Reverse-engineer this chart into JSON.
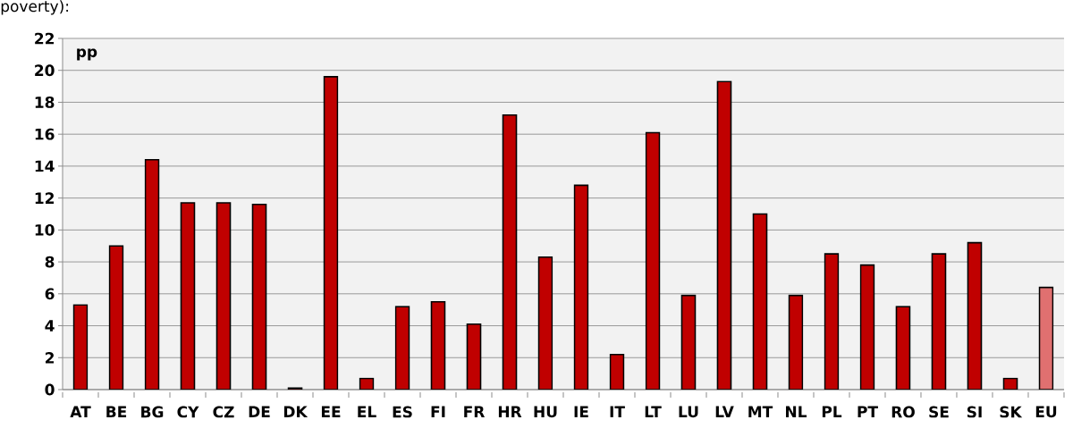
{
  "chart_data": {
    "type": "bar",
    "ylabel": "pp",
    "annotations": [
      "poverty):"
    ],
    "categories": [
      "AT",
      "BE",
      "BG",
      "CY",
      "CZ",
      "DE",
      "DK",
      "EE",
      "EL",
      "ES",
      "FI",
      "FR",
      "HR",
      "HU",
      "IE",
      "IT",
      "LT",
      "LU",
      "LV",
      "MT",
      "NL",
      "PL",
      "PT",
      "RO",
      "SE",
      "SI",
      "SK",
      "EU"
    ],
    "values": [
      5.3,
      9.0,
      14.4,
      11.7,
      11.7,
      11.6,
      0.1,
      19.6,
      0.7,
      5.2,
      5.5,
      4.1,
      17.2,
      8.3,
      12.8,
      2.2,
      16.1,
      5.9,
      19.3,
      11.0,
      5.9,
      8.5,
      7.8,
      5.2,
      8.5,
      9.2,
      0.7,
      6.4
    ],
    "colors": [
      "#c00000",
      "#c00000",
      "#c00000",
      "#c00000",
      "#c00000",
      "#c00000",
      "#c00000",
      "#c00000",
      "#c00000",
      "#c00000",
      "#c00000",
      "#c00000",
      "#c00000",
      "#c00000",
      "#c00000",
      "#c00000",
      "#c00000",
      "#c00000",
      "#c00000",
      "#c00000",
      "#c00000",
      "#c00000",
      "#c00000",
      "#c00000",
      "#c00000",
      "#c00000",
      "#c00000",
      "#e07070"
    ],
    "ylim": [
      0,
      22
    ],
    "yticks": [
      0,
      2,
      4,
      6,
      8,
      10,
      12,
      14,
      16,
      18,
      20,
      22
    ],
    "grid": "y"
  }
}
